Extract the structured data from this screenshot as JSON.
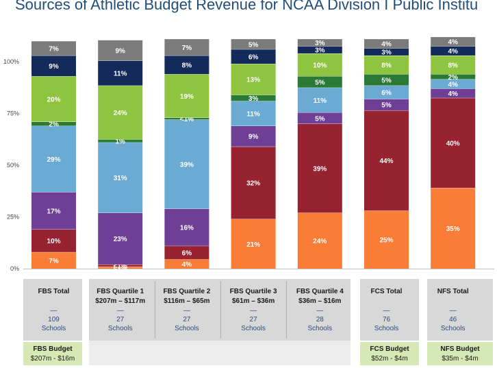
{
  "title": "Sources of Athletic Budget Revenue for NCAA Division I Public Institu",
  "chart_data": {
    "type": "bar",
    "stacked": true,
    "ylim": [
      0,
      100
    ],
    "yticks": [
      "0%",
      "25%",
      "50%",
      "75%",
      "100%"
    ],
    "categories": [
      {
        "name": "FBS Total",
        "range": "",
        "dash": "—",
        "count": "109",
        "unit": "Schools"
      },
      {
        "name": "FBS Quartile 1",
        "range": "$207m – $117m",
        "dash": "—",
        "count": "27",
        "unit": "Schools"
      },
      {
        "name": "FBS Quartile 2",
        "range": "$116m – $65m",
        "dash": "—",
        "count": "27",
        "unit": "Schools"
      },
      {
        "name": "FBS Quartile 3",
        "range": "$61m – $36m",
        "dash": "—",
        "count": "27",
        "unit": "Schools"
      },
      {
        "name": "FBS Quartile 4",
        "range": "$36m – $16m",
        "dash": "—",
        "count": "28",
        "unit": "Schools"
      },
      {
        "name": "FCS Total",
        "range": "",
        "dash": "—",
        "count": "76",
        "unit": "Schools"
      },
      {
        "name": "NFS Total",
        "range": "",
        "dash": "—",
        "count": "46",
        "unit": "Schools"
      }
    ],
    "series_colors": [
      "#f97d36",
      "#982330",
      "#6f3f95",
      "#6aaad3",
      "#2a7a36",
      "#8ec43f",
      "#142a5a",
      "#7b7b7b"
    ],
    "bars": [
      {
        "values": [
          8,
          11,
          18,
          32,
          2,
          22,
          10,
          7
        ],
        "labels": [
          "7%",
          "10%",
          "17%",
          "29%",
          "2%",
          "20%",
          "9%",
          "7%"
        ]
      },
      {
        "values": [
          1,
          1,
          25,
          34,
          1.5,
          26,
          12,
          10
        ],
        "labels": [
          "<1%",
          "<1%",
          "23%",
          "31%",
          "1%",
          "24%",
          "11%",
          "9%"
        ]
      },
      {
        "values": [
          4.5,
          6.5,
          18,
          43,
          1,
          21,
          9,
          8
        ],
        "labels": [
          "4%",
          "6%",
          "16%",
          "39%",
          "<1%",
          "19%",
          "8%",
          "7%"
        ]
      },
      {
        "values": [
          24,
          35,
          10,
          12,
          3,
          15,
          7,
          5
        ],
        "labels": [
          "21%",
          "32%",
          "9%",
          "11%",
          "3%",
          "13%",
          "6%",
          "5%"
        ]
      },
      {
        "values": [
          27,
          43,
          5.5,
          12,
          5.5,
          11,
          3.5,
          3.5
        ],
        "labels": [
          "24%",
          "39%",
          "5%",
          "11%",
          "5%",
          "10%",
          "3%",
          "3%"
        ]
      },
      {
        "values": [
          28,
          48.5,
          5.5,
          6.5,
          5.5,
          9,
          3.5,
          4.5
        ],
        "labels": [
          "25%",
          "44%",
          "5%",
          "6%",
          "5%",
          "8%",
          "3%",
          "4%"
        ]
      },
      {
        "values": [
          39,
          43.5,
          4.5,
          4.5,
          2.5,
          9,
          4.5,
          4.5
        ],
        "labels": [
          "35%",
          "40%",
          "4%",
          "4%",
          "2%",
          "8%",
          "4%",
          "4%"
        ]
      }
    ],
    "budget_boxes": [
      {
        "name": "FBS Budget",
        "range": "$207m - $16m"
      },
      {
        "name": "FCS Budget",
        "range": "$52m - $4m"
      },
      {
        "name": "NFS Budget",
        "range": "$35m - $4m"
      }
    ]
  }
}
